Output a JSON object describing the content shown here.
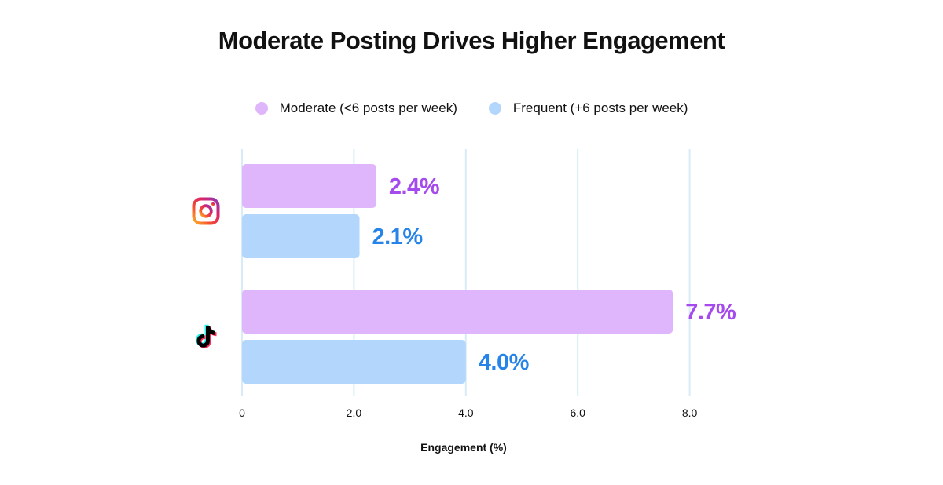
{
  "chart_data": {
    "type": "bar",
    "orientation": "horizontal",
    "title": "Moderate Posting Drives Higher Engagement",
    "xlabel": "Engagement (%)",
    "ylabel": "",
    "xlim": [
      0,
      8.0
    ],
    "x_ticks": [
      "0",
      "2.0",
      "4.0",
      "6.0",
      "8.0"
    ],
    "x_tick_values": [
      0,
      2,
      4,
      6,
      8
    ],
    "grid": "vertical",
    "legend_position": "top-center",
    "categories": [
      "Instagram",
      "TikTok"
    ],
    "category_icons": [
      "instagram-icon",
      "tiktok-icon"
    ],
    "series": [
      {
        "name": "Moderate (<6 posts per week)",
        "values": [
          2.4,
          7.7
        ],
        "labels": [
          "2.4%",
          "7.7%"
        ],
        "color": "#dfb6fb",
        "label_color": "#a54bee"
      },
      {
        "name": "Frequent (+6 posts per week)",
        "values": [
          2.1,
          4.0
        ],
        "labels": [
          "2.1%",
          "4.0%"
        ],
        "color": "#b2d6fc",
        "label_color": "#2684e8"
      }
    ]
  },
  "colors": {
    "grid": "#d9ecf6",
    "text": "#111111"
  }
}
